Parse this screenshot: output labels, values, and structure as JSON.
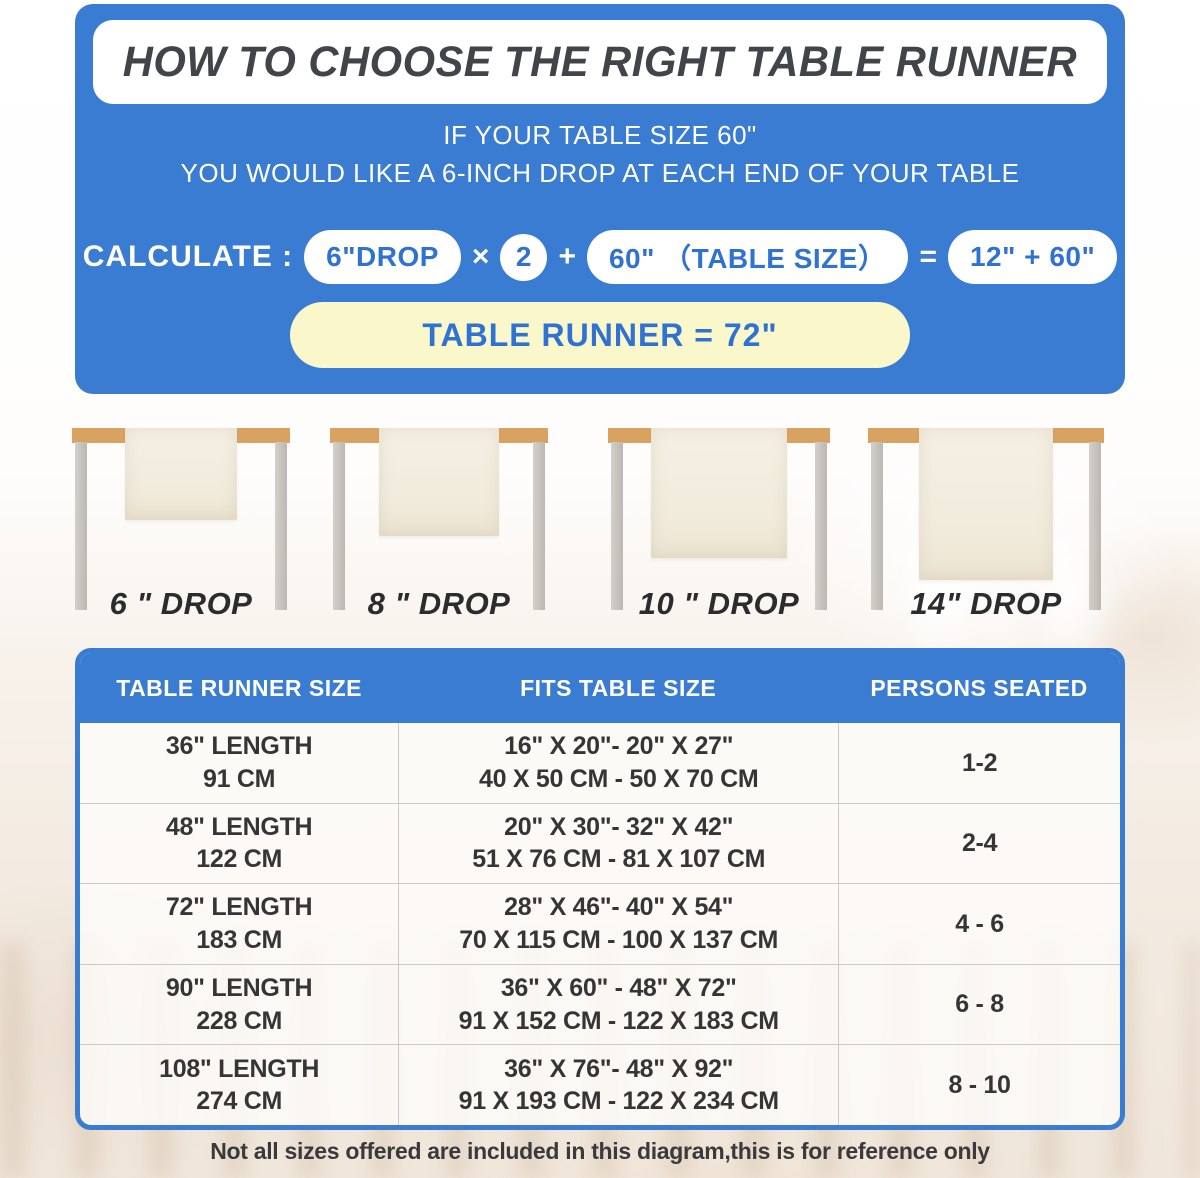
{
  "page": {
    "title": "HOW TO CHOOSE THE RIGHT TABLE RUNNER",
    "subtitle_line1": "IF YOUR TABLE SIZE 60\"",
    "subtitle_line2": "YOU WOULD LIKE A 6-INCH DROP AT EACH END OF YOUR TABLE",
    "footer_note": "Not all sizes offered are included in this diagram,this is for reference only"
  },
  "calculation": {
    "label": "CALCULATE :",
    "drop_pill": "6\"DROP",
    "times": "×",
    "multiplier": "2",
    "plus": "+",
    "table_size_pill": "60\" （TABLE SIZE）",
    "equals": "=",
    "sum_pill": "12\" + 60\"",
    "final_result": "TABLE RUNNER = 72\""
  },
  "drop_examples": [
    {
      "label": "6 \" DROP"
    },
    {
      "label": "8 \" DROP"
    },
    {
      "label": "10 \" DROP"
    },
    {
      "label": "14\" DROP"
    }
  ],
  "size_table": {
    "headers": [
      "TABLE RUNNER SIZE",
      "FITS TABLE SIZE",
      "PERSONS SEATED"
    ],
    "rows": [
      {
        "runner_in": "36\" LENGTH",
        "runner_cm": "91 CM",
        "fits_in": "16\" X 20\"- 20\" X 27\"",
        "fits_cm": "40 X 50 CM - 50 X 70 CM",
        "persons": "1-2"
      },
      {
        "runner_in": "48\" LENGTH",
        "runner_cm": "122 CM",
        "fits_in": "20\" X 30\"- 32\" X 42\"",
        "fits_cm": "51 X 76 CM - 81 X 107 CM",
        "persons": "2-4"
      },
      {
        "runner_in": "72\" LENGTH",
        "runner_cm": "183 CM",
        "fits_in": "28\" X 46\"- 40\" X 54\"",
        "fits_cm": "70 X 115 CM - 100 X 137 CM",
        "persons": "4 - 6"
      },
      {
        "runner_in": "90\" LENGTH",
        "runner_cm": "228 CM",
        "fits_in": "36\" X 60\" - 48\" X 72\"",
        "fits_cm": "91 X 152 CM - 122 X 183 CM",
        "persons": "6 - 8"
      },
      {
        "runner_in": "108\" LENGTH",
        "runner_cm": "274 CM",
        "fits_in": "36\" X 76\"- 48\" X 92\"",
        "fits_cm": "91 X 193 CM - 122 X 234 CM",
        "persons": "8 - 10"
      }
    ]
  },
  "colors": {
    "panel_blue": "#3b7cd3",
    "pill_text_blue": "#2f72d2",
    "result_yellow": "#faf8cb",
    "title_text": "#41454a",
    "tabletop_tan": "#d8a261",
    "leg_gray": "#c6c2bc",
    "runner_cream": "#f1ebdc"
  }
}
